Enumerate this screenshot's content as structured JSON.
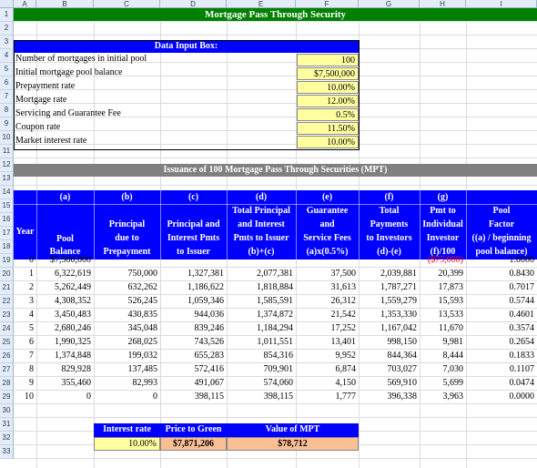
{
  "columns": [
    "A",
    "B",
    "C",
    "D",
    "E",
    "F",
    "G",
    "H",
    "I"
  ],
  "rows": [
    "1",
    "2",
    "3",
    "4",
    "5",
    "6",
    "7",
    "8",
    "9",
    "10",
    "11",
    "12",
    "13",
    "14",
    "15",
    "16",
    "17",
    "18",
    "19",
    "20",
    "21",
    "22",
    "23",
    "24",
    "25",
    "26",
    "27",
    "28",
    "29",
    "30",
    "31",
    "32",
    "33"
  ],
  "title": "Mortgage Pass Through Security",
  "input_box": {
    "title": "Data Input Box:",
    "rows": [
      {
        "label": "Number of mortgages in initial pool",
        "value": "100"
      },
      {
        "label": "Initial mortgage pool balance",
        "value": "$7,500,000"
      },
      {
        "label": "Prepayment rate",
        "value": "10.00%"
      },
      {
        "label": "Mortgage rate",
        "value": "12.00%"
      },
      {
        "label": "Servicing and Guarantee Fee",
        "value": "0.5%"
      },
      {
        "label": "Coupon rate",
        "value": "11.50%"
      },
      {
        "label": "Market interest rate",
        "value": "10.00%"
      }
    ]
  },
  "issuance_title": "Issuance of 100 Mortgage Pass Through Securities (MPT)",
  "table_header": {
    "letters": [
      "(a)",
      "(b)",
      "(c)",
      "(d)",
      "(e)",
      "(f)",
      "(g)"
    ],
    "year": "Year",
    "pool_balance": [
      "Pool",
      "Balance"
    ],
    "principal_prepay": [
      "Principal",
      "due to",
      "Prepayment"
    ],
    "principal_interest": [
      "Principal and",
      "Interest Pmts",
      "to Issuer"
    ],
    "total_pi": [
      "Total Principal",
      "and Interest",
      "Pmts to Issuer",
      "(b)+(c)"
    ],
    "guarantee": [
      "Guarantee",
      "and",
      "Service Fees",
      "(a)x(0.5%)"
    ],
    "total_payments": [
      "Total",
      "Payments",
      "to Investors",
      "(d)-(e)"
    ],
    "pmt_individual": [
      "Pmt to",
      "Individual",
      "Investor",
      "(f)/100"
    ],
    "pool_factor": [
      "Pool",
      "Factor",
      "((a) / beginning",
      "pool balance)"
    ]
  },
  "table_rows": [
    {
      "year": "0",
      "balance": "$7,500,000",
      "prepay": "",
      "pi": "",
      "total": "",
      "fee": "",
      "payments": "",
      "pmt": "($75,000)",
      "factor": "1.0000"
    },
    {
      "year": "1",
      "balance": "6,322,619",
      "prepay": "750,000",
      "pi": "1,327,381",
      "total": "2,077,381",
      "fee": "37,500",
      "payments": "2,039,881",
      "pmt": "20,399",
      "factor": "0.8430"
    },
    {
      "year": "2",
      "balance": "5,262,449",
      "prepay": "632,262",
      "pi": "1,186,622",
      "total": "1,818,884",
      "fee": "31,613",
      "payments": "1,787,271",
      "pmt": "17,873",
      "factor": "0.7017"
    },
    {
      "year": "3",
      "balance": "4,308,352",
      "prepay": "526,245",
      "pi": "1,059,346",
      "total": "1,585,591",
      "fee": "26,312",
      "payments": "1,559,279",
      "pmt": "15,593",
      "factor": "0.5744"
    },
    {
      "year": "4",
      "balance": "3,450,483",
      "prepay": "430,835",
      "pi": "944,036",
      "total": "1,374,872",
      "fee": "21,542",
      "payments": "1,353,330",
      "pmt": "13,533",
      "factor": "0.4601"
    },
    {
      "year": "5",
      "balance": "2,680,246",
      "prepay": "345,048",
      "pi": "839,246",
      "total": "1,184,294",
      "fee": "17,252",
      "payments": "1,167,042",
      "pmt": "11,670",
      "factor": "0.3574"
    },
    {
      "year": "6",
      "balance": "1,990,325",
      "prepay": "268,025",
      "pi": "743,526",
      "total": "1,011,551",
      "fee": "13,401",
      "payments": "998,150",
      "pmt": "9,981",
      "factor": "0.2654"
    },
    {
      "year": "7",
      "balance": "1,374,848",
      "prepay": "199,032",
      "pi": "655,283",
      "total": "854,316",
      "fee": "9,952",
      "payments": "844,364",
      "pmt": "8,444",
      "factor": "0.1833"
    },
    {
      "year": "8",
      "balance": "829,928",
      "prepay": "137,485",
      "pi": "572,416",
      "total": "709,901",
      "fee": "6,874",
      "payments": "703,027",
      "pmt": "7,030",
      "factor": "0.1107"
    },
    {
      "year": "9",
      "balance": "355,460",
      "prepay": "82,993",
      "pi": "491,067",
      "total": "574,060",
      "fee": "4,150",
      "payments": "569,910",
      "pmt": "5,699",
      "factor": "0.0474"
    },
    {
      "year": "10",
      "balance": "0",
      "prepay": "0",
      "pi": "398,115",
      "total": "398,115",
      "fee": "1,777",
      "payments": "396,338",
      "pmt": "3,963",
      "factor": "0.0000"
    }
  ],
  "summary": {
    "interest_rate_label": "Interest rate",
    "price_label": "Price to Green",
    "value_label": "Value of MPT",
    "interest_rate": "10.00%",
    "price": "$7,871,206",
    "value": "$78,712"
  }
}
